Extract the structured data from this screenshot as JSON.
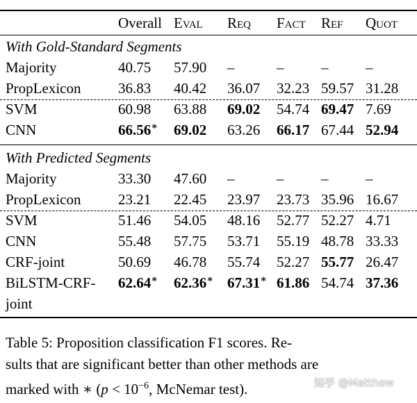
{
  "table": {
    "headers": [
      "Overall",
      "Eval",
      "Req",
      "Fact",
      "Ref",
      "Quot"
    ],
    "sections": [
      {
        "title": "With Gold-Standard Segments",
        "rows": [
          {
            "method": "Majority",
            "cells": [
              "40.75",
              "57.90",
              "–",
              "–",
              "–",
              "–"
            ],
            "bold": [],
            "star": []
          },
          {
            "method": "PropLexicon",
            "cells": [
              "36.83",
              "40.42",
              "36.07",
              "32.23",
              "59.57",
              "31.28"
            ],
            "bold": [],
            "star": []
          },
          {
            "method": "SVM",
            "cells": [
              "60.98",
              "63.88",
              "69.02",
              "54.74",
              "69.47",
              "7.69"
            ],
            "bold": [
              2,
              4
            ],
            "star": []
          },
          {
            "method": "CNN",
            "cells": [
              "66.56",
              "69.02",
              "63.26",
              "66.17",
              "67.44",
              "52.94"
            ],
            "bold": [
              0,
              1,
              3,
              5
            ],
            "star": [
              0
            ]
          }
        ]
      },
      {
        "title": "With Predicted Segments",
        "rows": [
          {
            "method": "Majority",
            "cells": [
              "33.30",
              "47.60",
              "–",
              "–",
              "–",
              "–"
            ],
            "bold": [],
            "star": []
          },
          {
            "method": "PropLexicon",
            "cells": [
              "23.21",
              "22.45",
              "23.97",
              "23.73",
              "35.96",
              "16.67"
            ],
            "bold": [],
            "star": []
          },
          {
            "method": "SVM",
            "cells": [
              "51.46",
              "54.05",
              "48.16",
              "52.77",
              "52.27",
              "4.71"
            ],
            "bold": [],
            "star": []
          },
          {
            "method": "CNN",
            "cells": [
              "55.48",
              "57.75",
              "53.71",
              "55.19",
              "48.78",
              "33.33"
            ],
            "bold": [],
            "star": []
          },
          {
            "method": "CRF-joint",
            "cells": [
              "50.69",
              "46.78",
              "55.74",
              "52.27",
              "55.77",
              "26.47"
            ],
            "bold": [
              4
            ],
            "star": []
          },
          {
            "method": "BiLSTM-CRF-",
            "method_cont": "joint",
            "cells": [
              "62.64",
              "62.36",
              "67.31",
              "61.86",
              "54.74",
              "37.36"
            ],
            "bold": [
              0,
              1,
              2,
              3,
              5
            ],
            "star": [
              0,
              1,
              2
            ]
          }
        ]
      }
    ]
  },
  "caption": {
    "line1": "Table 5: Proposition classification F1 scores. Re-",
    "line2": "sults that are significant better than other methods are",
    "line3_prefix": "marked with",
    "star_symbol": "∗",
    "open": "(",
    "p_var": "p",
    "lt": " < 10",
    "exponent": "−6",
    "line3_suffix": ", McNemar test)."
  },
  "watermark": "知乎 @Matthew"
}
